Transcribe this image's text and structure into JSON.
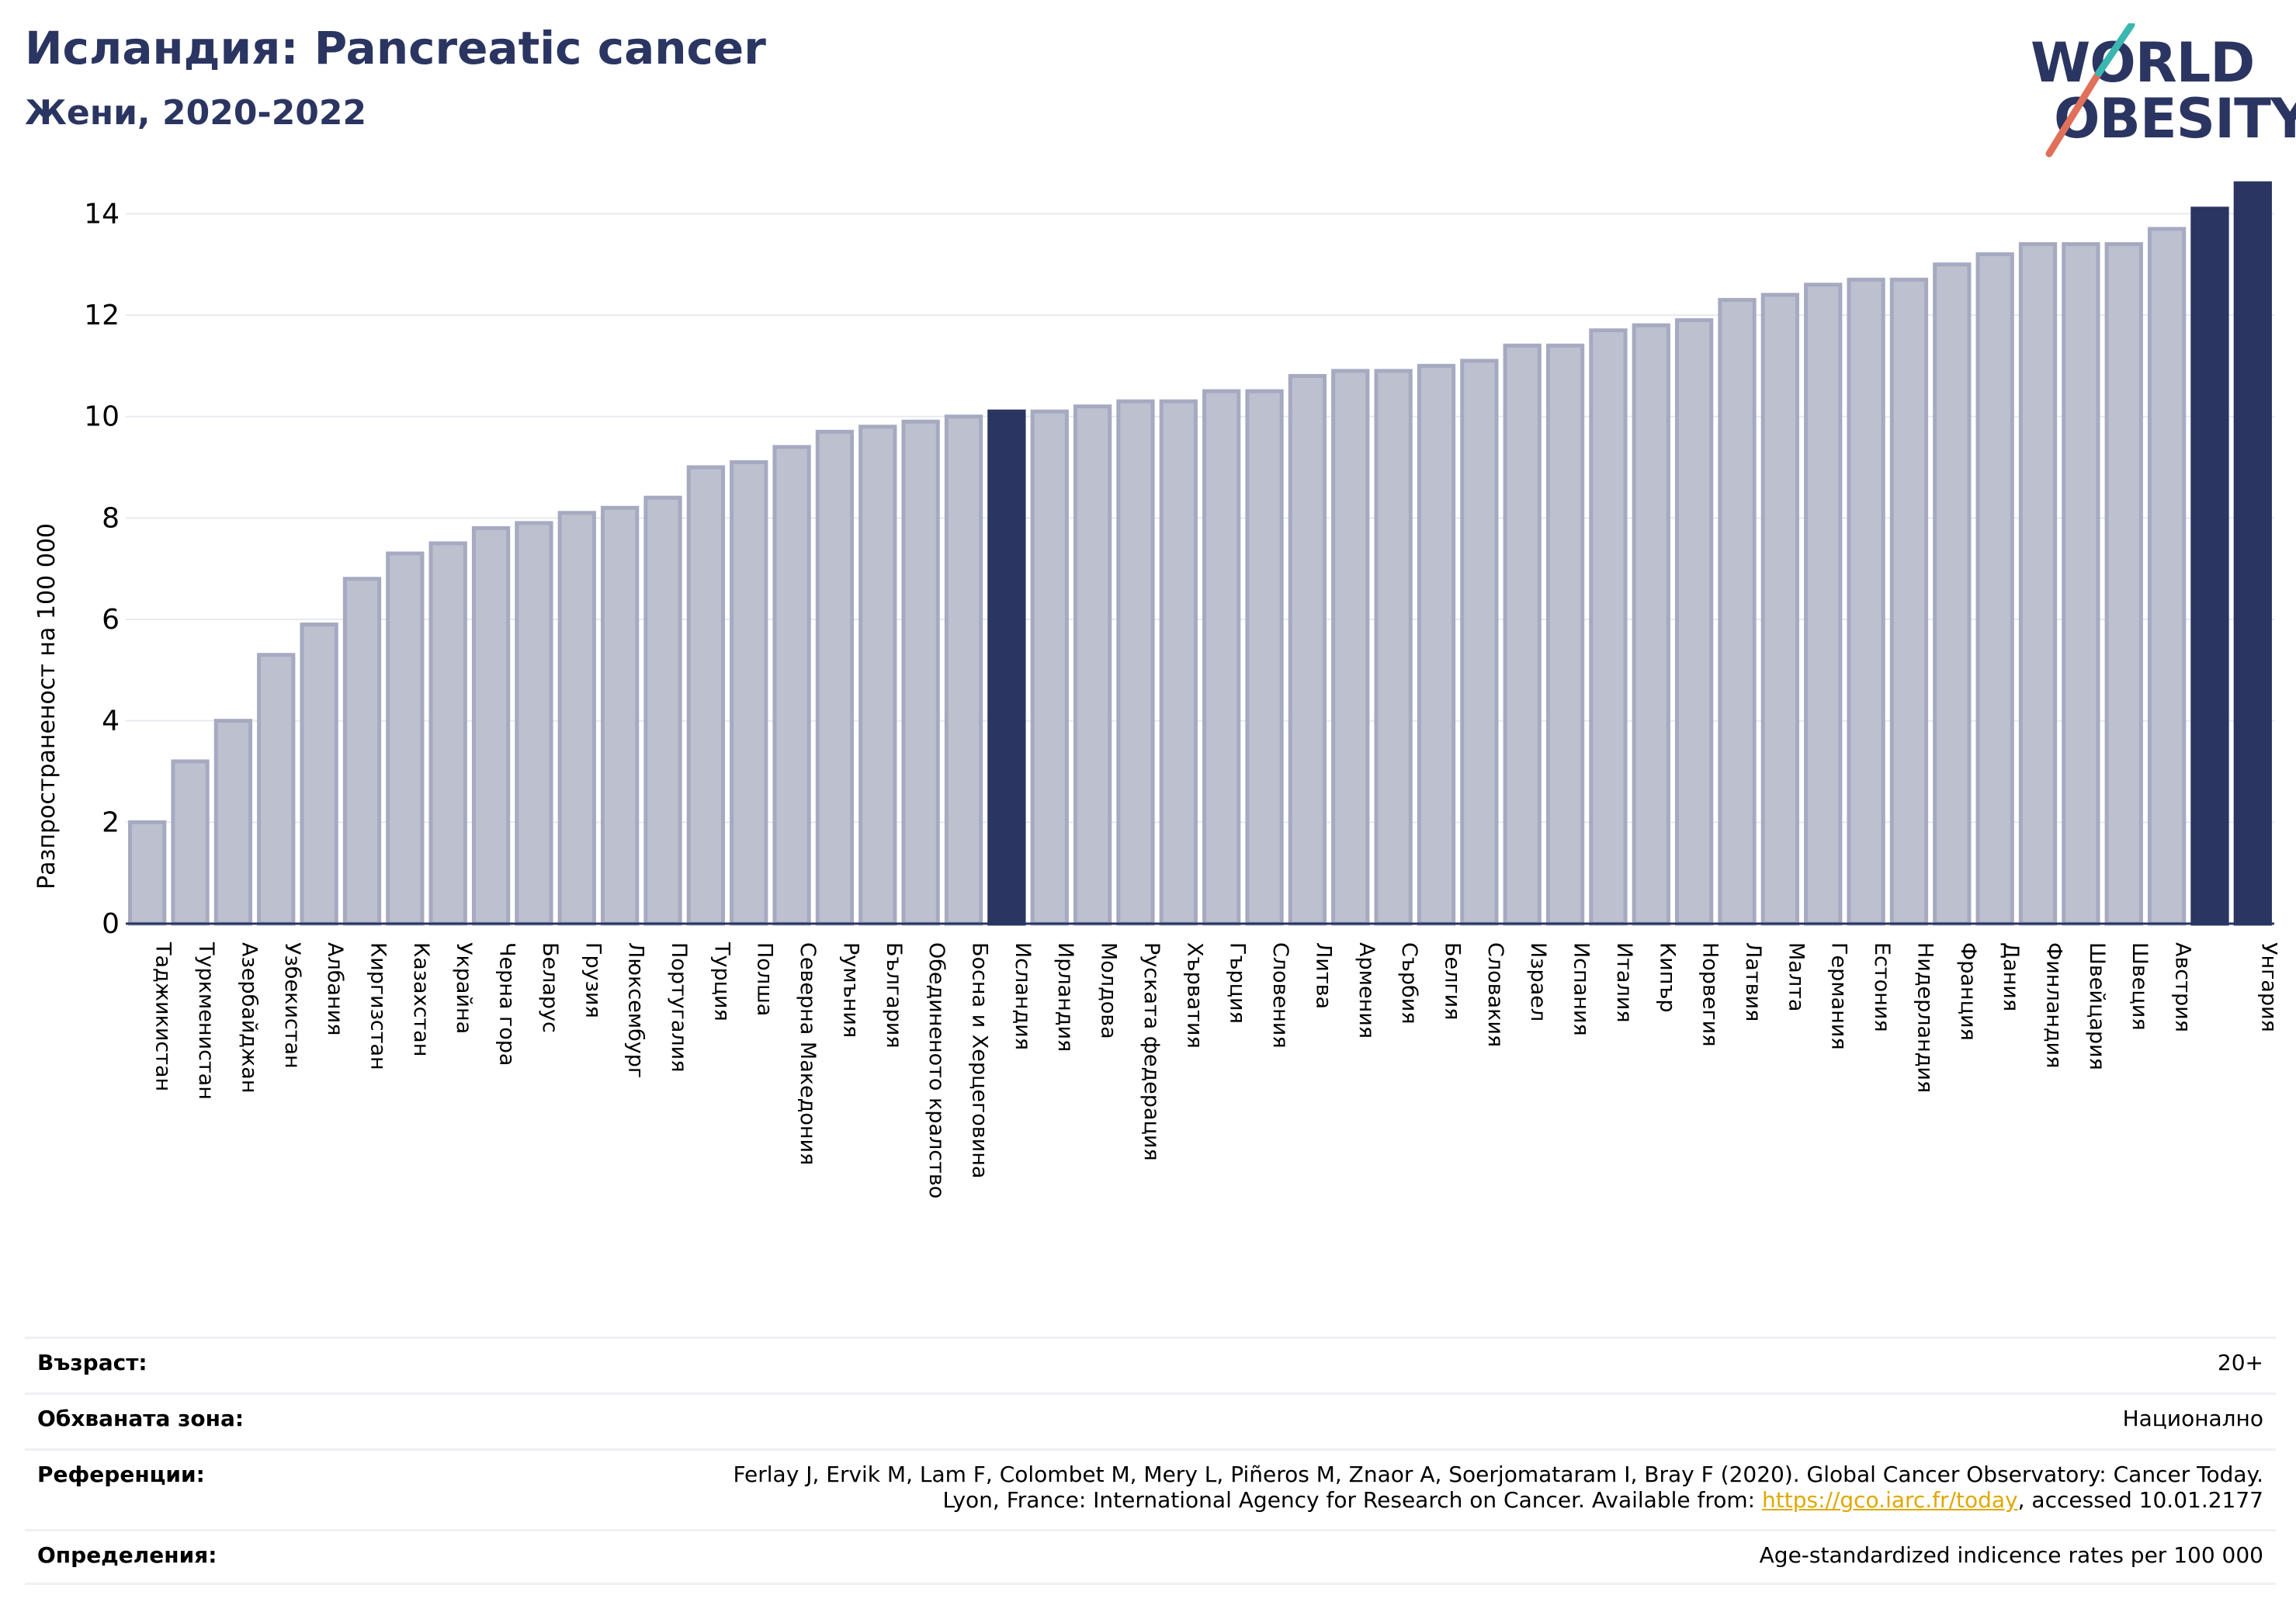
{
  "header": {
    "title": "Исландия: Pancreatic cancer",
    "subtitle": "Жени, 2020-2022"
  },
  "logo": {
    "line1": "WORLD",
    "line2": "OBESITY",
    "brand_color": "#2b3561",
    "slash_colors": [
      "#e0705a",
      "#3ab7b0"
    ]
  },
  "chart_data": {
    "type": "bar",
    "ylabel": "Разпространеност  на 100 000",
    "ylim": [
      0,
      15
    ],
    "yticks": [
      0,
      2,
      4,
      6,
      8,
      10,
      12,
      14
    ],
    "grid": true,
    "bar_color": "#bcc0cf",
    "bar_edge_color": "#a6aac1",
    "highlight_color": "#2b3561",
    "highlighted": [
      "Исландия",
      "Унгария"
    ],
    "categories": [
      "Таджикистан",
      "Туркменистан",
      "Азербайджан",
      "Узбекистан",
      "Албания",
      "Киргизстан",
      "Казахстан",
      "Украйна",
      "Черна гора",
      "Беларус",
      "Грузия",
      "Люксембург",
      "Португалия",
      "Турция",
      "Полша",
      "Северна Македония",
      "Румъния",
      "България",
      "Обединеното кралство",
      "Босна и Херцеговина",
      "Исландия",
      "Ирландия",
      "Молдова",
      "Руската федерация",
      "Хърватия",
      "Гърция",
      "Словения",
      "Литва",
      "Армения",
      "Сърбия",
      "Белгия",
      "Словакия",
      "Израел",
      "Испания",
      "Италия",
      "Кипър",
      "Норвегия",
      "Латвия",
      "Малта",
      "Германия",
      "Естония",
      "Нидерландия",
      "Франция",
      "Дания",
      "Финландия",
      "Швейцария",
      "Швеция",
      "Австрия",
      "",
      "Унгария"
    ],
    "values": [
      2.0,
      3.2,
      4.0,
      5.3,
      5.9,
      6.8,
      7.3,
      7.5,
      7.8,
      7.9,
      8.1,
      8.2,
      8.4,
      9.0,
      9.1,
      9.4,
      9.7,
      9.8,
      9.9,
      10.0,
      10.1,
      10.1,
      10.2,
      10.3,
      10.3,
      10.5,
      10.5,
      10.8,
      10.9,
      10.9,
      11.0,
      11.1,
      11.4,
      11.4,
      11.7,
      11.8,
      11.9,
      12.3,
      12.4,
      12.6,
      12.7,
      12.7,
      13.0,
      13.2,
      13.4,
      13.4,
      13.4,
      13.7,
      14.1,
      14.6
    ]
  },
  "info": {
    "age_label": "Възраст:",
    "age_value": "20+",
    "area_label": "Обхваната зона:",
    "area_value": "Национално",
    "ref_label": "Референции:",
    "ref_line1": "Ferlay J, Ervik M, Lam F, Colombet M, Mery L, Piñeros M, Znaor A, Soerjomataram I, Bray F (2020). Global Cancer Observatory: Cancer Today.",
    "ref_line2_pre": "Lyon, France: International Agency for Research on Cancer. Available from: ",
    "ref_link": "https://gco.iarc.fr/today",
    "ref_line2_post": ", accessed 10.01.2177",
    "def_label": "Определения:",
    "def_value": "Age-standardized indicence rates per 100 000"
  }
}
